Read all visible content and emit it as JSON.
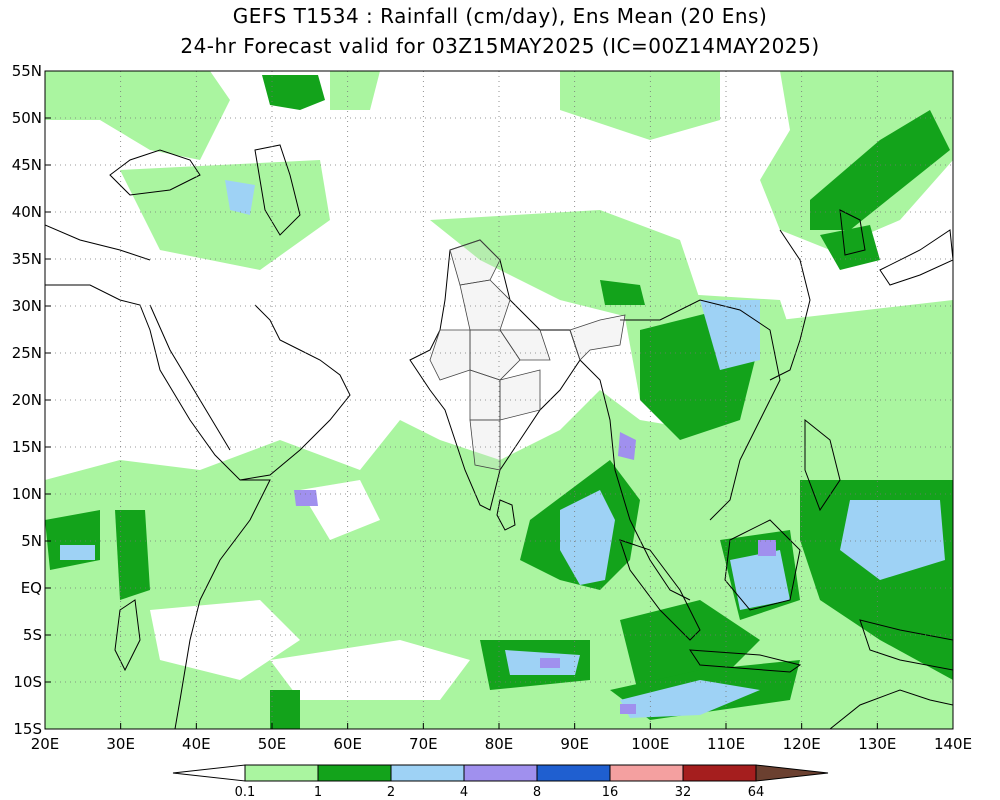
{
  "title_line1": "GEFS T1534 : Rainfall (cm/day), Ens Mean (20 Ens)",
  "title_line2": "24-hr Forecast valid for 03Z15MAY2025 (IC=00Z14MAY2025)",
  "map": {
    "lon_range": [
      20,
      140
    ],
    "lat_range": [
      -15,
      55
    ],
    "lon_ticks": [
      {
        "v": 20,
        "label": "20E"
      },
      {
        "v": 30,
        "label": "30E"
      },
      {
        "v": 40,
        "label": "40E"
      },
      {
        "v": 50,
        "label": "50E"
      },
      {
        "v": 60,
        "label": "60E"
      },
      {
        "v": 70,
        "label": "70E"
      },
      {
        "v": 80,
        "label": "80E"
      },
      {
        "v": 90,
        "label": "90E"
      },
      {
        "v": 100,
        "label": "100E"
      },
      {
        "v": 110,
        "label": "110E"
      },
      {
        "v": 120,
        "label": "120E"
      },
      {
        "v": 130,
        "label": "130E"
      },
      {
        "v": 140,
        "label": "140E"
      }
    ],
    "lat_ticks": [
      {
        "v": 55,
        "label": "55N"
      },
      {
        "v": 50,
        "label": "50N"
      },
      {
        "v": 45,
        "label": "45N"
      },
      {
        "v": 40,
        "label": "40N"
      },
      {
        "v": 35,
        "label": "35N"
      },
      {
        "v": 30,
        "label": "30N"
      },
      {
        "v": 25,
        "label": "25N"
      },
      {
        "v": 20,
        "label": "20N"
      },
      {
        "v": 15,
        "label": "15N"
      },
      {
        "v": 10,
        "label": "10N"
      },
      {
        "v": 5,
        "label": "5N"
      },
      {
        "v": 0,
        "label": "EQ"
      },
      {
        "v": -5,
        "label": "5S"
      },
      {
        "v": -10,
        "label": "10S"
      },
      {
        "v": -15,
        "label": "15S"
      }
    ],
    "gridlines": "dotted"
  },
  "colorbar": {
    "labels": [
      "0.1",
      "1",
      "2",
      "4",
      "8",
      "16",
      "32",
      "64"
    ],
    "colors": [
      "#ffffff",
      "#aaf5a0",
      "#13a31b",
      "#9ed2f5",
      "#a090ee",
      "#1f5fd0",
      "#f4a0a0",
      "#a51e1e",
      "#6b4030"
    ]
  }
}
